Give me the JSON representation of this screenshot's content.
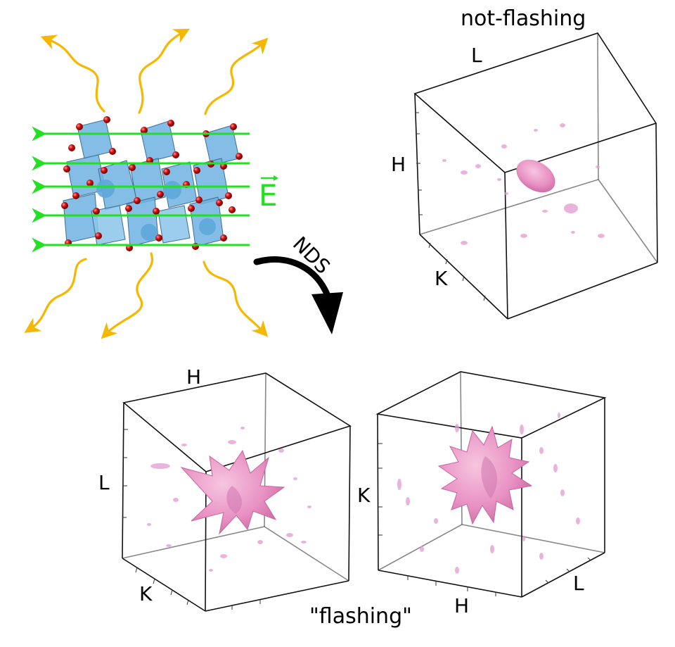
{
  "panels": {
    "top_right": {
      "title": "not-flashing",
      "axes": [
        "L",
        "H",
        "K"
      ]
    },
    "bottom_left": {
      "axes": [
        "H",
        "L",
        "K"
      ]
    },
    "bottom_right": {
      "axes": [
        "K",
        "H",
        "L"
      ]
    },
    "caption": "\"flashing\""
  },
  "crystal": {
    "field_label": "E",
    "field_arrow_count": 5
  },
  "transition": {
    "label": "NDS"
  },
  "colors": {
    "octahedra": "#6fb1e0",
    "oxygen": "#d01010",
    "field_arrows": "#22e022",
    "emission_arrows": "#f5b800",
    "diffuse_scattering": "#e88fd2",
    "cube_edges": "#000000"
  }
}
